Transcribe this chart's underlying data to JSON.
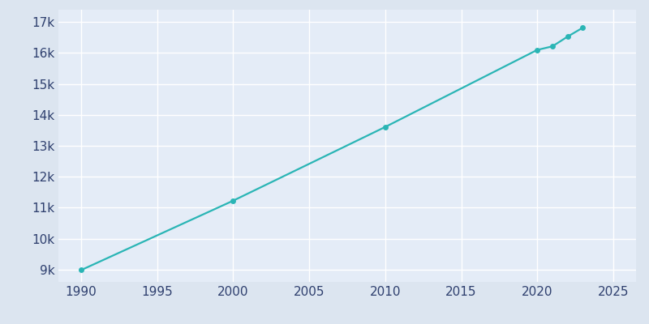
{
  "years": [
    1990,
    2000,
    2010,
    2020,
    2021,
    2022,
    2023
  ],
  "population": [
    8983,
    11226,
    13609,
    16100,
    16216,
    16531,
    16819
  ],
  "line_color": "#2ab5b5",
  "marker_color": "#2ab5b5",
  "fig_bg_color": "#dce5f0",
  "plot_bg_color": "#e4ecf7",
  "grid_color": "#ffffff",
  "tick_label_color": "#2e3f6e",
  "xlim": [
    1988.5,
    2026.5
  ],
  "ylim": [
    8600,
    17400
  ],
  "xticks": [
    1990,
    1995,
    2000,
    2005,
    2010,
    2015,
    2020,
    2025
  ],
  "yticks": [
    9000,
    10000,
    11000,
    12000,
    13000,
    14000,
    15000,
    16000,
    17000
  ],
  "tick_fontsize": 11,
  "linewidth": 1.6,
  "markersize": 5
}
